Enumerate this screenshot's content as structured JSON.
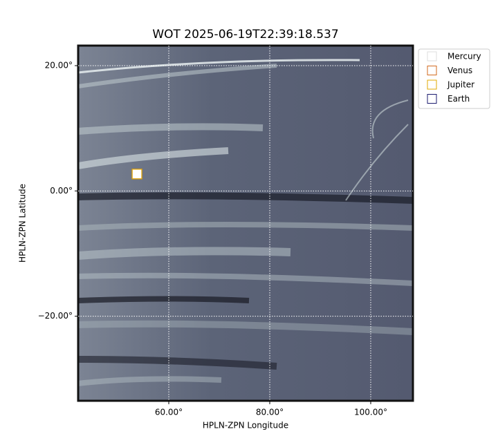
{
  "chart_data": {
    "type": "scatter",
    "title": "WOT 2025-06-19T22:39:18.537",
    "x_label": "HPLN-ZPN Longitude",
    "y_label": "HPLN-ZPN Latitude",
    "xlim": [
      42.05,
      108.36
    ],
    "ylim": [
      -33.5,
      23.2
    ],
    "xticks": [
      {
        "value": 60,
        "label": "60.00°"
      },
      {
        "value": 80,
        "label": "80.00°"
      },
      {
        "value": 100,
        "label": "100.00°"
      }
    ],
    "yticks": [
      {
        "value": -20,
        "label": "−20.00°"
      },
      {
        "value": 0,
        "label": "0.00°"
      },
      {
        "value": 20,
        "label": "20.00°"
      }
    ],
    "grid": true,
    "legend": "outside upper right",
    "series": [
      {
        "name": "Mercury",
        "color": "#dddddd",
        "x": [
          53.7
        ],
        "y": [
          2.7
        ]
      },
      {
        "name": "Venus",
        "color": "#d2691e",
        "x": [
          53.7
        ],
        "y": [
          2.7
        ]
      },
      {
        "name": "Jupiter",
        "color": "#e0a800",
        "x": [
          53.7
        ],
        "y": [
          2.7
        ]
      },
      {
        "name": "Earth",
        "color": "#1a1a6e",
        "x": [],
        "y": []
      }
    ]
  }
}
